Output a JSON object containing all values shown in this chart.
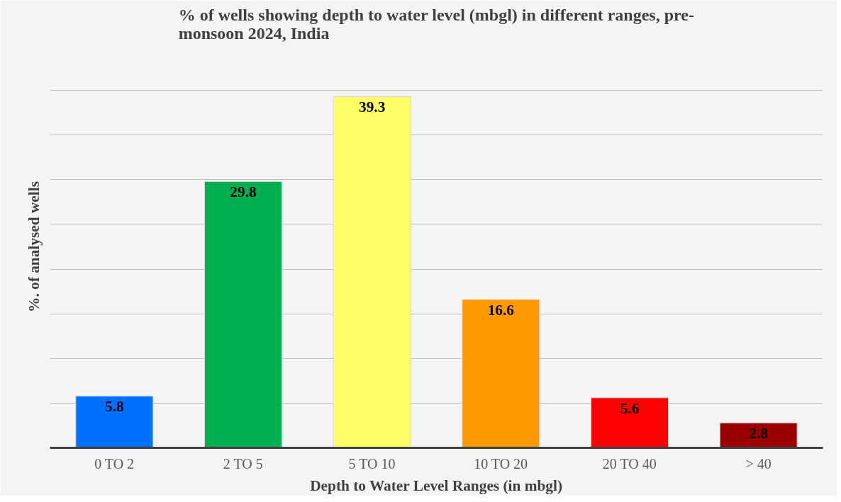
{
  "chart_data": {
    "type": "bar",
    "title": "% of wells showing depth to water level (mbgl) in different ranges, pre-monsoon 2024, India",
    "xlabel": "Depth to Water Level Ranges (in mbgl)",
    "ylabel": "%. of analysed wells",
    "categories": [
      "0 TO 2",
      "2 TO 5",
      "5 TO 10",
      "10 TO 20",
      "20 TO 40",
      "> 40"
    ],
    "values": [
      5.8,
      29.8,
      39.3,
      16.6,
      5.6,
      2.8
    ],
    "colors": [
      "#0070ff",
      "#00b050",
      "#ffff66",
      "#ff9900",
      "#ff0000",
      "#990000"
    ],
    "ylim": [
      0,
      45
    ],
    "yticks": [
      {
        "value": 0,
        "label": null
      },
      {
        "value": 5,
        "label": null
      },
      {
        "value": 10,
        "label": null
      },
      {
        "value": 15,
        "label": null
      },
      {
        "value": 20,
        "label": null
      },
      {
        "value": 25,
        "label": null
      },
      {
        "value": 30,
        "label": null
      },
      {
        "value": 35,
        "label": null
      },
      {
        "value": 40,
        "label": null
      },
      {
        "value": 45,
        "label": null
      }
    ],
    "grid": "y",
    "tick_labels": "x",
    "data_labels": true
  }
}
